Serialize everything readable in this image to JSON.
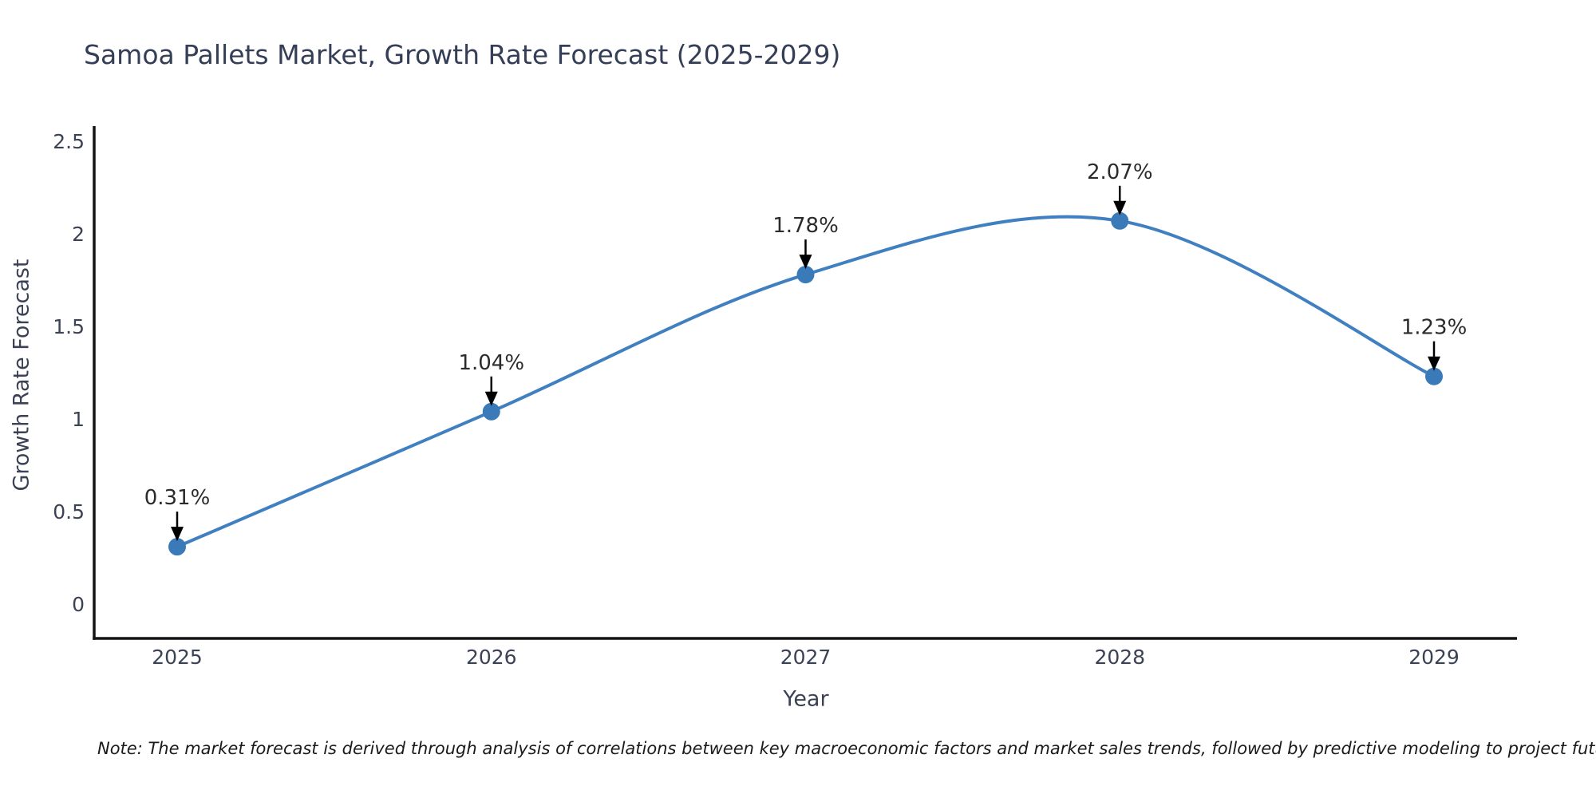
{
  "note": {
    "text": "Note: The market forecast is derived through analysis of correlations between key macroeconomic factors and market sales trends, followed by predictive modeling to project future sales"
  },
  "chart_data": {
    "type": "line",
    "title": "Samoa Pallets Market, Growth Rate Forecast (2025-2029)",
    "xlabel": "Year",
    "ylabel": "Growth Rate Forecast",
    "categories": [
      "2025",
      "2026",
      "2027",
      "2028",
      "2029"
    ],
    "x": [
      2025,
      2026,
      2027,
      2028,
      2029
    ],
    "series": [
      {
        "name": "Growth Rate Forecast",
        "values": [
          0.31,
          1.04,
          1.78,
          2.07,
          1.23
        ],
        "point_labels": [
          "0.31%",
          "1.04%",
          "1.78%",
          "2.07%",
          "1.23%"
        ]
      }
    ],
    "yticks": [
      0,
      0.5,
      1,
      1.5,
      2,
      2.5
    ],
    "ytick_labels": [
      "0",
      "0.5",
      "1",
      "1.5",
      "2",
      "2.5"
    ],
    "ylim": [
      -0.185,
      2.582
    ],
    "grid": false,
    "legend": "none",
    "line_shape": "spline",
    "marker": "circle",
    "annotations": "arrow-down-to-point",
    "colors": {
      "line": "#4080c0",
      "marker": "#3a7ab8",
      "axis": "#141414",
      "title_text": "#353e57",
      "tick_text": "#3b4254",
      "annotation_text": "#2b2b2b",
      "arrow": "#000000",
      "background": "#ffffff"
    }
  }
}
